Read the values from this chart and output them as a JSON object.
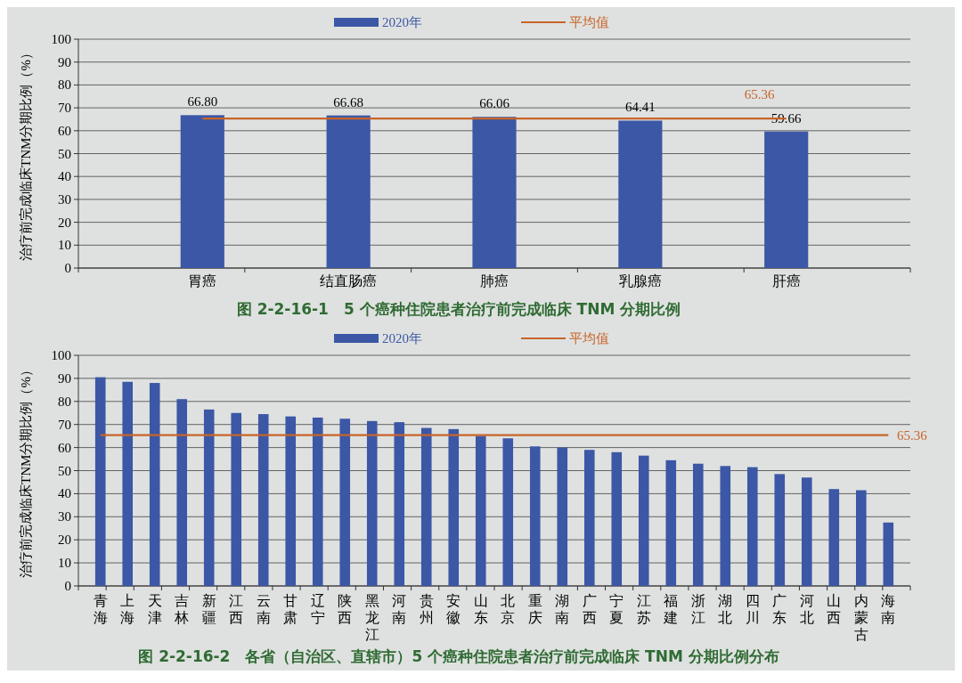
{
  "chart_data": [
    {
      "type": "bar",
      "title": "图 2-2-16-1　5 个癌种住院患者治疗前完成临床 TNM 分期比例",
      "ylabel": "治疗前完成临床TNM分期比例（%）",
      "categories": [
        "胃癌",
        "结直肠癌",
        "肺癌",
        "乳腺癌",
        "肝癌"
      ],
      "series": [
        {
          "name": "2020年",
          "color": "#3b57a6",
          "values": [
            66.8,
            66.68,
            66.06,
            64.41,
            59.66
          ],
          "value_labels": [
            "66.80",
            "66.68",
            "66.06",
            "64.41",
            "59.66"
          ]
        },
        {
          "name": "平均值",
          "type": "line",
          "color": "#c8642a",
          "values": [
            65.36,
            65.36,
            65.36,
            65.36,
            65.36
          ],
          "value_labels": [
            null,
            null,
            null,
            null,
            "65.36"
          ]
        }
      ],
      "ylim": [
        0,
        100
      ],
      "yticks": [
        0,
        10,
        20,
        30,
        40,
        50,
        60,
        70,
        80,
        90,
        100
      ],
      "grid": "y",
      "legend": "top"
    },
    {
      "type": "bar",
      "title": "图 2-2-16-2　各省（自治区、直辖市）5 个癌种住院患者治疗前完成临床 TNM 分期比例分布",
      "ylabel": "治疗前完成临床TNM分期比例（%）",
      "categories": [
        "青海",
        "上海",
        "天津",
        "吉林",
        "新疆",
        "江西",
        "云南",
        "甘肃",
        "辽宁",
        "陕西",
        "黑龙江",
        "河南",
        "贵州",
        "安徽",
        "山东",
        "北京",
        "重庆",
        "湖南",
        "广西",
        "宁夏",
        "江苏",
        "福建",
        "浙江",
        "湖北",
        "四川",
        "广东",
        "河北",
        "山西",
        "内蒙古",
        "海南"
      ],
      "series": [
        {
          "name": "2020年",
          "color": "#3b57a6",
          "values": [
            90.5,
            88.5,
            88,
            81,
            76.5,
            75,
            74.5,
            73.5,
            73,
            72.5,
            71.5,
            71,
            68.5,
            68,
            65,
            64,
            60.5,
            60,
            59,
            58,
            56.5,
            54.5,
            53,
            52,
            51.5,
            48.5,
            47,
            42,
            41.5,
            27.5
          ]
        },
        {
          "name": "平均值",
          "type": "line",
          "color": "#c8642a",
          "values": [
            65.36,
            65.36,
            65.36,
            65.36,
            65.36,
            65.36,
            65.36,
            65.36,
            65.36,
            65.36,
            65.36,
            65.36,
            65.36,
            65.36,
            65.36,
            65.36,
            65.36,
            65.36,
            65.36,
            65.36,
            65.36,
            65.36,
            65.36,
            65.36,
            65.36,
            65.36,
            65.36,
            65.36,
            65.36,
            65.36
          ],
          "value_labels": [
            null,
            null,
            null,
            null,
            null,
            null,
            null,
            null,
            null,
            null,
            null,
            null,
            null,
            null,
            null,
            null,
            null,
            null,
            null,
            null,
            null,
            null,
            null,
            null,
            null,
            null,
            null,
            null,
            null,
            "65.36"
          ]
        }
      ],
      "ylim": [
        0,
        100
      ],
      "yticks": [
        0,
        10,
        20,
        30,
        40,
        50,
        60,
        70,
        80,
        90,
        100
      ],
      "grid": "y",
      "legend": "top"
    }
  ]
}
